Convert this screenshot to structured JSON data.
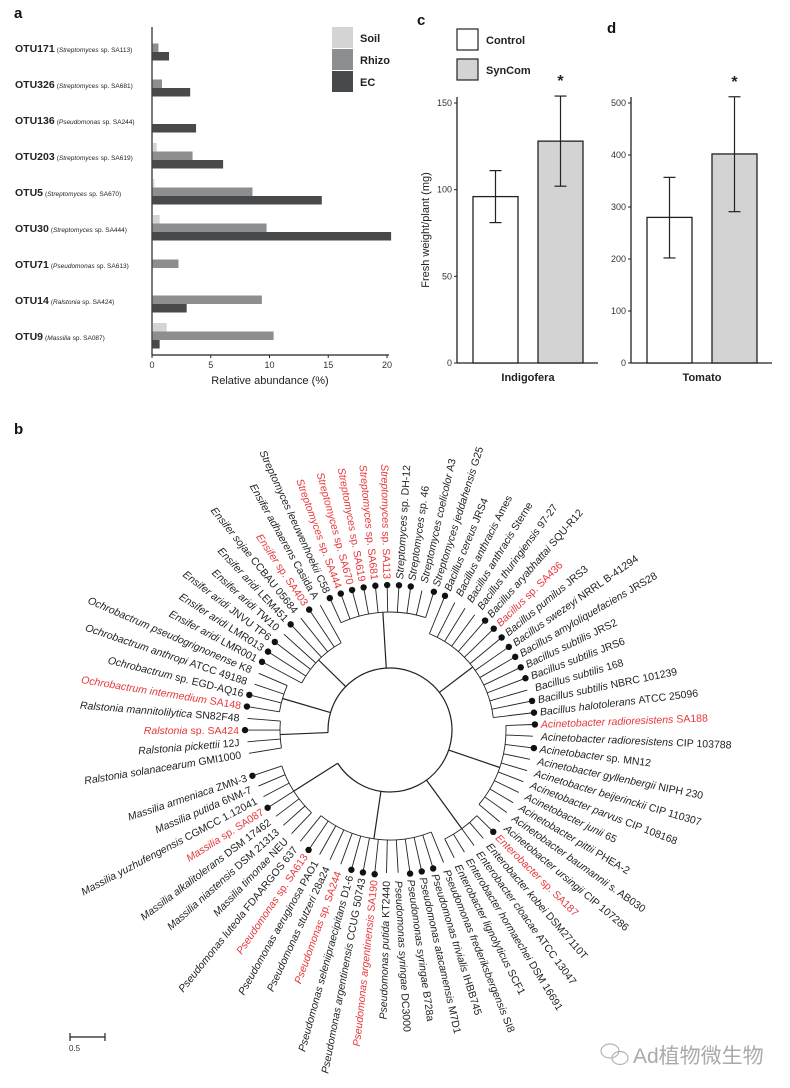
{
  "colors": {
    "soil": "#d4d4d4",
    "rhizo": "#8c8e8f",
    "ec": "#48494b",
    "control": "#ffffff",
    "syncom": "#d3d3d3",
    "highlight": "#e8363a",
    "text": "#222222"
  },
  "panel_letters": {
    "a": "a",
    "b": "b",
    "c": "c",
    "d": "d"
  },
  "chart_data": [
    {
      "id": "a",
      "type": "bar",
      "orientation": "horizontal",
      "categories": [
        {
          "otu": "OTU171",
          "taxon": "Streptomyces",
          "strain": "sp. SA113"
        },
        {
          "otu": "OTU326",
          "taxon": "Streptomyces",
          "strain": "sp. SA681"
        },
        {
          "otu": "OTU136",
          "taxon": "Pseudomonas",
          "strain": "sp. SA244"
        },
        {
          "otu": "OTU203",
          "taxon": "Streptomyces",
          "strain": "sp. SA619"
        },
        {
          "otu": "OTU5",
          "taxon": "Streptomyces",
          "strain": "sp. SA670"
        },
        {
          "otu": "OTU30",
          "taxon": "Streptomyces",
          "strain": "sp. SA444"
        },
        {
          "otu": "OTU71",
          "taxon": "Pseudomonas",
          "strain": "sp. SA613"
        },
        {
          "otu": "OTU14",
          "taxon": "Ralstonia",
          "strain": "sp. SA424"
        },
        {
          "otu": "OTU9",
          "taxon": "Massilia",
          "strain": "sp. SA087"
        }
      ],
      "series": [
        {
          "name": "Soil",
          "values": [
            0,
            0,
            0,
            0.35,
            0.15,
            0.6,
            0,
            0,
            1.2
          ]
        },
        {
          "name": "Rhizo",
          "values": [
            0.5,
            0.8,
            0,
            3.4,
            8.5,
            9.7,
            2.2,
            9.3,
            10.3
          ]
        },
        {
          "name": "EC",
          "values": [
            1.4,
            3.2,
            3.7,
            6.0,
            14.4,
            20.3,
            0,
            2.9,
            0.6
          ]
        }
      ],
      "xlabel": "Relative abundance (%)",
      "xlim": [
        0,
        20
      ],
      "xticks": [
        "0",
        "5",
        "10",
        "15",
        "20"
      ],
      "legend": "top-right",
      "grid": false
    },
    {
      "id": "c",
      "type": "bar",
      "categories": [
        "Control",
        "SynCom"
      ],
      "values": [
        96,
        128
      ],
      "error_low": [
        81,
        102
      ],
      "error_high": [
        111,
        154
      ],
      "significance": [
        "",
        "*"
      ],
      "xlabel": "Indigofera",
      "ylabel": "Fresh weight/plant (mg)",
      "ylim": [
        0,
        150
      ],
      "yticks": [
        "0",
        "50",
        "100",
        "150"
      ],
      "legend": "top-left",
      "legend_entries": [
        "Control",
        "SynCom"
      ]
    },
    {
      "id": "d",
      "type": "bar",
      "categories": [
        "Control",
        "SynCom"
      ],
      "values": [
        280,
        402
      ],
      "error_low": [
        202,
        291
      ],
      "error_high": [
        357,
        512
      ],
      "significance": [
        "",
        "*"
      ],
      "xlabel": "Tomato",
      "ylabel": "",
      "ylim": [
        0,
        500
      ],
      "yticks": [
        "0",
        "100",
        "200",
        "300",
        "400",
        "500"
      ]
    }
  ],
  "tree": {
    "scale_label": "0.5",
    "leaves": [
      {
        "taxon": "Ralstonia solanacearum",
        "strain": "GMI1000",
        "red": false,
        "dot": false
      },
      {
        "taxon": "Ralstonia pickettii",
        "strain": "12J",
        "red": false,
        "dot": false
      },
      {
        "taxon": "Ralstonia",
        "strain": "sp. SA424",
        "red": true,
        "dot": true
      },
      {
        "taxon": "Ralstonia mannitolilytica",
        "strain": "SN82F48",
        "red": false,
        "dot": false
      },
      {
        "taxon": "Ochrobactrum intermedium",
        "strain": "SA148",
        "red": true,
        "dot": true
      },
      {
        "taxon": "Ochrobactrum",
        "strain": "sp. EGD-AQ16",
        "red": false,
        "dot": true
      },
      {
        "taxon": "Ochrobactrum anthropi",
        "strain": "ATCC 49188",
        "red": false,
        "dot": false
      },
      {
        "taxon": "Ochrobactrum pseudogrignonense",
        "strain": "K8",
        "red": false,
        "dot": false
      },
      {
        "taxon": "Ensifer aridi",
        "strain": "LMR001",
        "red": false,
        "dot": true
      },
      {
        "taxon": "Ensifer aridi",
        "strain": "LMR013",
        "red": false,
        "dot": true
      },
      {
        "taxon": "Ensifer aridi",
        "strain": "JNVU TP6",
        "red": false,
        "dot": true
      },
      {
        "taxon": "Ensifer aridi",
        "strain": "TW10",
        "red": false,
        "dot": false
      },
      {
        "taxon": "Ensifer aridi",
        "strain": "LEM451",
        "red": false,
        "dot": true
      },
      {
        "taxon": "Ensifer sojae",
        "strain": "CCBAU 05684",
        "red": false,
        "dot": false
      },
      {
        "taxon": "Ensifer",
        "strain": "sp. SA403",
        "red": true,
        "dot": true
      },
      {
        "taxon": "Ensifer adhaerens",
        "strain": "Casida A",
        "red": false,
        "dot": false
      },
      {
        "taxon": "Streptomyces leeuwenhoekii",
        "strain": "C58",
        "red": false,
        "dot": true
      },
      {
        "taxon": "Streptomyces",
        "strain": "sp. SA444",
        "red": true,
        "dot": true
      },
      {
        "taxon": "Streptomyces",
        "strain": "sp. SA670",
        "red": true,
        "dot": true
      },
      {
        "taxon": "Streptomyces",
        "strain": "sp. SA619",
        "red": true,
        "dot": true
      },
      {
        "taxon": "Streptomyces",
        "strain": "sp. SA681",
        "red": true,
        "dot": true
      },
      {
        "taxon": "Streptomyces",
        "strain": "sp. SA113",
        "red": true,
        "dot": true
      },
      {
        "taxon": "Streptomyces",
        "strain": "sp. DH-12",
        "red": false,
        "dot": true
      },
      {
        "taxon": "Streptomyces",
        "strain": "sp. 46",
        "red": false,
        "dot": true
      },
      {
        "taxon": "Streptomyces coelicolor",
        "strain": "A3",
        "red": false,
        "dot": false
      },
      {
        "taxon": "Streptomyces jeddahensis",
        "strain": "G25",
        "red": false,
        "dot": true
      },
      {
        "taxon": "Bacillus cereus",
        "strain": "JRS4",
        "red": false,
        "dot": true
      },
      {
        "taxon": "Bacillus anthracis",
        "strain": "Ames",
        "red": false,
        "dot": false
      },
      {
        "taxon": "Bacillus anthracis",
        "strain": "Sterne",
        "red": false,
        "dot": false
      },
      {
        "taxon": "Bacillus thuringiensis",
        "strain": "97-27",
        "red": false,
        "dot": false
      },
      {
        "taxon": "Bacillus aryabhattai",
        "strain": "SQU-R12",
        "red": false,
        "dot": true
      },
      {
        "taxon": "Bacillus",
        "strain": "sp. SA436",
        "red": true,
        "dot": true
      },
      {
        "taxon": "Bacillus pumilus",
        "strain": "JRS3",
        "red": false,
        "dot": true
      },
      {
        "taxon": "Bacillus swezeyi",
        "strain": "NRRL B-41294",
        "red": false,
        "dot": true
      },
      {
        "taxon": "Bacillus amyloliquefaciens",
        "strain": "JRS28",
        "red": false,
        "dot": true
      },
      {
        "taxon": "Bacillus subtilis",
        "strain": "JRS2",
        "red": false,
        "dot": true
      },
      {
        "taxon": "Bacillus subtilis",
        "strain": "JRS6",
        "red": false,
        "dot": true
      },
      {
        "taxon": "Bacillus subtilis",
        "strain": "168",
        "red": false,
        "dot": false
      },
      {
        "taxon": "Bacillus subtilis",
        "strain": "NBRC 101239",
        "red": false,
        "dot": true
      },
      {
        "taxon": "Bacillus halotolerans",
        "strain": "ATCC 25096",
        "red": false,
        "dot": true
      },
      {
        "taxon": "Acinetobacter radioresistens",
        "strain": "SA188",
        "red": true,
        "dot": true
      },
      {
        "taxon": "Acinetobacter radioresistens",
        "strain": "CIP 103788",
        "red": false,
        "dot": false
      },
      {
        "taxon": "Acinetobacter",
        "strain": "sp. MN12",
        "red": false,
        "dot": true
      },
      {
        "taxon": "Acinetobacter gyllenbergii",
        "strain": "NIPH 230",
        "red": false,
        "dot": false
      },
      {
        "taxon": "Acinetobacter beijerinckii",
        "strain": "CIP 110307",
        "red": false,
        "dot": false
      },
      {
        "taxon": "Acinetobacter parvus",
        "strain": "CIP 108168",
        "red": false,
        "dot": false
      },
      {
        "taxon": "Acinetobacter junii",
        "strain": "65",
        "red": false,
        "dot": false
      },
      {
        "taxon": "Acinetobacter pittii",
        "strain": "PHEA-2",
        "red": false,
        "dot": false
      },
      {
        "taxon": "Acinetobacter baumannii",
        "strain": "s. AB030",
        "red": false,
        "dot": false
      },
      {
        "taxon": "Acinetobacter ursingii",
        "strain": "CIP 107286",
        "red": false,
        "dot": false
      },
      {
        "taxon": "Enterobacter",
        "strain": "sp. SA187",
        "red": true,
        "dot": true
      },
      {
        "taxon": "Enterobacter kobei",
        "strain": "DSM27110T",
        "red": false,
        "dot": false
      },
      {
        "taxon": "Enterobacter cloacae",
        "strain": "ATCC 13047",
        "red": false,
        "dot": false
      },
      {
        "taxon": "Enterobacter hormaechei",
        "strain": "DSM 16691",
        "red": false,
        "dot": false
      },
      {
        "taxon": "Enterobacter lignolyticus",
        "strain": "SCF1",
        "red": false,
        "dot": false
      },
      {
        "taxon": "Pseudomonas frederiksbergensis",
        "strain": "SI8",
        "red": false,
        "dot": false
      },
      {
        "taxon": "Pseudomonas trivialis",
        "strain": "IHBB745",
        "red": false,
        "dot": true
      },
      {
        "taxon": "Pseudomonas atacamensis",
        "strain": "M7D1",
        "red": false,
        "dot": true
      },
      {
        "taxon": "Pseudomonas syringae",
        "strain": "B728a",
        "red": false,
        "dot": true
      },
      {
        "taxon": "Pseudomonas syringae",
        "strain": "DC3000",
        "red": false,
        "dot": false
      },
      {
        "taxon": "Pseudomonas putida",
        "strain": "KT2440",
        "red": false,
        "dot": false
      },
      {
        "taxon": "Pseudomonas argentinensis",
        "strain": "SA190",
        "red": true,
        "dot": true
      },
      {
        "taxon": "Pseudomonas argentinensis",
        "strain": "CCUG 50743",
        "red": false,
        "dot": true
      },
      {
        "taxon": "Pseudomonas seleniipraecipitans",
        "strain": "D1-6",
        "red": false,
        "dot": true
      },
      {
        "taxon": "Pseudomonas",
        "strain": "sp. SA244",
        "red": true,
        "dot": false
      },
      {
        "taxon": "Pseudomonas stutzeri",
        "strain": "28a24",
        "red": false,
        "dot": false
      },
      {
        "taxon": "Pseudomonas aeruginosa",
        "strain": "PAO1",
        "red": false,
        "dot": false
      },
      {
        "taxon": "Pseudomonas",
        "strain": "sp. SA613",
        "red": true,
        "dot": true
      },
      {
        "taxon": "Pseudomonas luteola",
        "strain": "FDAARGOS 637",
        "red": false,
        "dot": false
      },
      {
        "taxon": "Massilia timonae",
        "strain": "NEU",
        "red": false,
        "dot": false
      },
      {
        "taxon": "Massilia niastensis",
        "strain": "DSM 21313",
        "red": false,
        "dot": false
      },
      {
        "taxon": "Massilia alkalitolerans",
        "strain": "DSM 17462",
        "red": false,
        "dot": false
      },
      {
        "taxon": "Massilia",
        "strain": "sp. SA087",
        "red": true,
        "dot": true
      },
      {
        "taxon": "Massilia yuzhufengensis",
        "strain": "CGMCC 1.12041",
        "red": false,
        "dot": false
      },
      {
        "taxon": "Massilia putida",
        "strain": "6NM-7",
        "red": false,
        "dot": false
      },
      {
        "taxon": "Massilia armeniaca",
        "strain": "ZMN-3",
        "red": false,
        "dot": true
      }
    ]
  },
  "watermark": {
    "text": "Ad植物微生物",
    "icon": "wechat-icon"
  }
}
